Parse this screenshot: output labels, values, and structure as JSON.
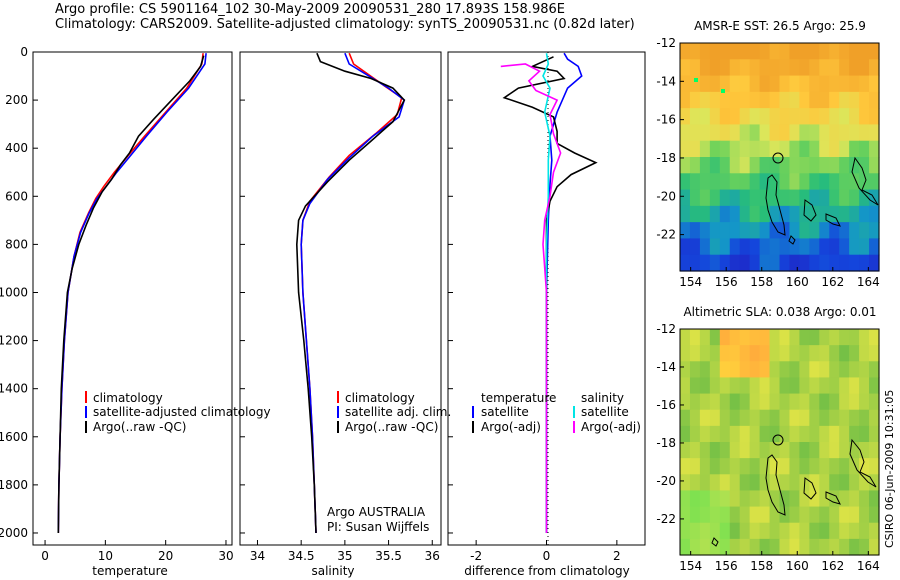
{
  "header": {
    "line1": "Argo profile: CS 5901164_102 30-May-2009 20090531_280 17.893S 158.986E",
    "line2": "Climatology: CARS2009. Satellite-adjusted climatology: synTS_20090531.nc (0.82d later)"
  },
  "side_label": "CSIRO 06-Jun-2009 10:31:05",
  "colors": {
    "clim": "#ff0000",
    "sat": "#0000ff",
    "argo": "#000000",
    "sal_sat": "#00e5e5",
    "sal_argo": "#ff00ff"
  },
  "chart_data": [
    {
      "type": "line",
      "xlabel": "temperature",
      "xlim": [
        -2,
        31
      ],
      "ylim": [
        2050,
        0
      ],
      "xticks": [
        "0",
        "10",
        "20",
        "30"
      ],
      "yticks": [
        "0",
        "200",
        "400",
        "600",
        "800",
        "1000",
        "1200",
        "1400",
        "1600",
        "1800",
        "2000"
      ],
      "legend": [
        "climatology",
        "satellite-adjusted climatology",
        "Argo(..raw -QC)"
      ],
      "series": [
        {
          "name": "climatology",
          "color": "clim",
          "points": [
            [
              26.2,
              5
            ],
            [
              26.0,
              50
            ],
            [
              23.5,
              150
            ],
            [
              20,
              250
            ],
            [
              16.5,
              350
            ],
            [
              13.8,
              430
            ],
            [
              11.5,
              500
            ],
            [
              9.7,
              560
            ],
            [
              8.4,
              610
            ],
            [
              7.2,
              670
            ],
            [
              5.8,
              750
            ],
            [
              4.8,
              850
            ],
            [
              3.8,
              1000
            ],
            [
              3.2,
              1200
            ],
            [
              2.8,
              1400
            ],
            [
              2.5,
              1600
            ],
            [
              2.3,
              1800
            ],
            [
              2.2,
              2000
            ]
          ]
        },
        {
          "name": "satellite-adjusted climatology",
          "color": "sat",
          "points": [
            [
              26.7,
              5
            ],
            [
              26.5,
              50
            ],
            [
              23.8,
              150
            ],
            [
              20.2,
              250
            ],
            [
              16.8,
              350
            ],
            [
              14.2,
              430
            ],
            [
              11.9,
              500
            ],
            [
              10.1,
              560
            ],
            [
              8.6,
              610
            ],
            [
              7.3,
              670
            ],
            [
              5.9,
              750
            ],
            [
              4.8,
              850
            ],
            [
              3.8,
              1000
            ],
            [
              3.2,
              1200
            ],
            [
              2.8,
              1400
            ],
            [
              2.5,
              1600
            ],
            [
              2.3,
              1800
            ],
            [
              2.2,
              2000
            ]
          ]
        },
        {
          "name": "Argo(..raw -QC)",
          "color": "argo",
          "points": [
            [
              26.3,
              15
            ],
            [
              25.8,
              60
            ],
            [
              24.0,
              120
            ],
            [
              21.0,
              200
            ],
            [
              18.0,
              280
            ],
            [
              15.5,
              350
            ],
            [
              14.0,
              420
            ],
            [
              12.5,
              470
            ],
            [
              11.0,
              530
            ],
            [
              9.5,
              580
            ],
            [
              8.0,
              650
            ],
            [
              6.8,
              720
            ],
            [
              5.6,
              800
            ],
            [
              4.5,
              900
            ],
            [
              3.7,
              1000
            ],
            [
              3.1,
              1200
            ],
            [
              2.7,
              1400
            ],
            [
              2.5,
              1600
            ],
            [
              2.3,
              1800
            ],
            [
              2.2,
              2000
            ]
          ]
        }
      ]
    },
    {
      "type": "line",
      "xlabel": "salinity",
      "xlim": [
        33.8,
        36.1
      ],
      "ylim": [
        2050,
        0
      ],
      "xticks": [
        "34",
        "34.5",
        "35",
        "35.5",
        "36"
      ],
      "legend": [
        "climatology",
        "satellite adj. clim.",
        "Argo(..raw -QC)"
      ],
      "annotation": [
        "Argo AUSTRALIA",
        "PI: Susan Wijffels"
      ],
      "series": [
        {
          "name": "climatology",
          "color": "clim",
          "points": [
            [
              35.05,
              5
            ],
            [
              35.1,
              50
            ],
            [
              35.45,
              140
            ],
            [
              35.65,
              190
            ],
            [
              35.6,
              260
            ],
            [
              35.35,
              340
            ],
            [
              35.05,
              430
            ],
            [
              34.82,
              520
            ],
            [
              34.6,
              620
            ],
            [
              34.52,
              700
            ],
            [
              34.5,
              800
            ],
            [
              34.52,
              1000
            ],
            [
              34.56,
              1200
            ],
            [
              34.6,
              1400
            ],
            [
              34.63,
              1600
            ],
            [
              34.65,
              1800
            ],
            [
              34.67,
              2000
            ]
          ]
        },
        {
          "name": "satellite adj. clim.",
          "color": "sat",
          "points": [
            [
              35.0,
              5
            ],
            [
              35.05,
              50
            ],
            [
              35.5,
              150
            ],
            [
              35.68,
              200
            ],
            [
              35.62,
              270
            ],
            [
              35.32,
              350
            ],
            [
              35.05,
              440
            ],
            [
              34.8,
              530
            ],
            [
              34.6,
              630
            ],
            [
              34.52,
              700
            ],
            [
              34.5,
              800
            ],
            [
              34.52,
              1000
            ],
            [
              34.56,
              1200
            ],
            [
              34.6,
              1400
            ],
            [
              34.63,
              1600
            ],
            [
              34.65,
              1800
            ],
            [
              34.67,
              2000
            ]
          ]
        },
        {
          "name": "Argo(..raw -QC)",
          "color": "argo",
          "points": [
            [
              34.68,
              5
            ],
            [
              34.72,
              40
            ],
            [
              35.0,
              80
            ],
            [
              35.3,
              110
            ],
            [
              35.55,
              150
            ],
            [
              35.68,
              200
            ],
            [
              35.55,
              290
            ],
            [
              35.3,
              370
            ],
            [
              35.05,
              450
            ],
            [
              34.8,
              540
            ],
            [
              34.55,
              640
            ],
            [
              34.47,
              700
            ],
            [
              34.45,
              800
            ],
            [
              34.47,
              1000
            ],
            [
              34.53,
              1200
            ],
            [
              34.58,
              1400
            ],
            [
              34.62,
              1600
            ],
            [
              34.65,
              1800
            ],
            [
              34.67,
              2000
            ]
          ]
        }
      ]
    },
    {
      "type": "line",
      "xlabel": "difference from climatology",
      "xlim": [
        -2.8,
        2.8
      ],
      "ylim": [
        2050,
        0
      ],
      "xticks": [
        "-2",
        "0",
        "2"
      ],
      "legend": [
        "temperature",
        "satellite",
        "Argo(-adj)",
        "salinity",
        "satellite",
        "Argo(-adj)"
      ],
      "series": [
        {
          "name": "temperature satellite",
          "color": "sat",
          "points": [
            [
              0.5,
              5
            ],
            [
              0.6,
              30
            ],
            [
              0.9,
              60
            ],
            [
              1.0,
              100
            ],
            [
              0.6,
              150
            ],
            [
              0.3,
              250
            ],
            [
              0.1,
              350
            ],
            [
              0.15,
              450
            ],
            [
              0.1,
              550
            ],
            [
              0.05,
              700
            ],
            [
              0,
              1000
            ],
            [
              0,
              2000
            ]
          ]
        },
        {
          "name": "temperature Argo(-adj)",
          "color": "argo",
          "points": [
            [
              0.2,
              20
            ],
            [
              -0.4,
              60
            ],
            [
              0.3,
              80
            ],
            [
              0.5,
              110
            ],
            [
              -0.8,
              150
            ],
            [
              -1.2,
              190
            ],
            [
              -0.4,
              230
            ],
            [
              0.2,
              270
            ],
            [
              0.3,
              330
            ],
            [
              0.3,
              380
            ],
            [
              0.8,
              420
            ],
            [
              1.4,
              460
            ],
            [
              0.7,
              510
            ],
            [
              0.3,
              560
            ],
            [
              0.1,
              620
            ],
            [
              0,
              700
            ],
            [
              0,
              1000
            ],
            [
              0,
              2000
            ]
          ]
        },
        {
          "name": "salinity satellite",
          "color": "sal_sat",
          "points": [
            [
              0,
              5
            ],
            [
              0.05,
              50
            ],
            [
              -0.1,
              100
            ],
            [
              0.1,
              150
            ],
            [
              -0.05,
              250
            ],
            [
              0.1,
              350
            ],
            [
              0.05,
              450
            ],
            [
              0.05,
              600
            ],
            [
              0,
              800
            ],
            [
              0,
              2000
            ]
          ]
        },
        {
          "name": "salinity Argo(-adj)",
          "color": "sal_argo",
          "points": [
            [
              -1.3,
              60
            ],
            [
              -0.6,
              50
            ],
            [
              -0.2,
              80
            ],
            [
              -0.5,
              120
            ],
            [
              -0.3,
              160
            ],
            [
              0.3,
              200
            ],
            [
              0.1,
              260
            ],
            [
              0.2,
              340
            ],
            [
              0.4,
              420
            ],
            [
              0.2,
              500
            ],
            [
              0.1,
              600
            ],
            [
              -0.05,
              700
            ],
            [
              -0.1,
              800
            ],
            [
              0,
              1000
            ],
            [
              0,
              2000
            ]
          ]
        }
      ]
    },
    {
      "type": "heatmap",
      "title": "AMSR-E SST: 26.5 Argo: 25.9",
      "xticks": [
        "154",
        "156",
        "158",
        "160",
        "162",
        "164"
      ],
      "yticks": [
        "-12",
        "-14",
        "-16",
        "-18",
        "-20",
        "-22"
      ]
    },
    {
      "type": "heatmap",
      "title": "Altimetric SLA: 0.038 Argo: 0.01",
      "xticks": [
        "154",
        "156",
        "158",
        "160",
        "162",
        "164"
      ],
      "yticks": [
        "-12",
        "-14",
        "-16",
        "-18",
        "-20",
        "-22"
      ]
    }
  ]
}
